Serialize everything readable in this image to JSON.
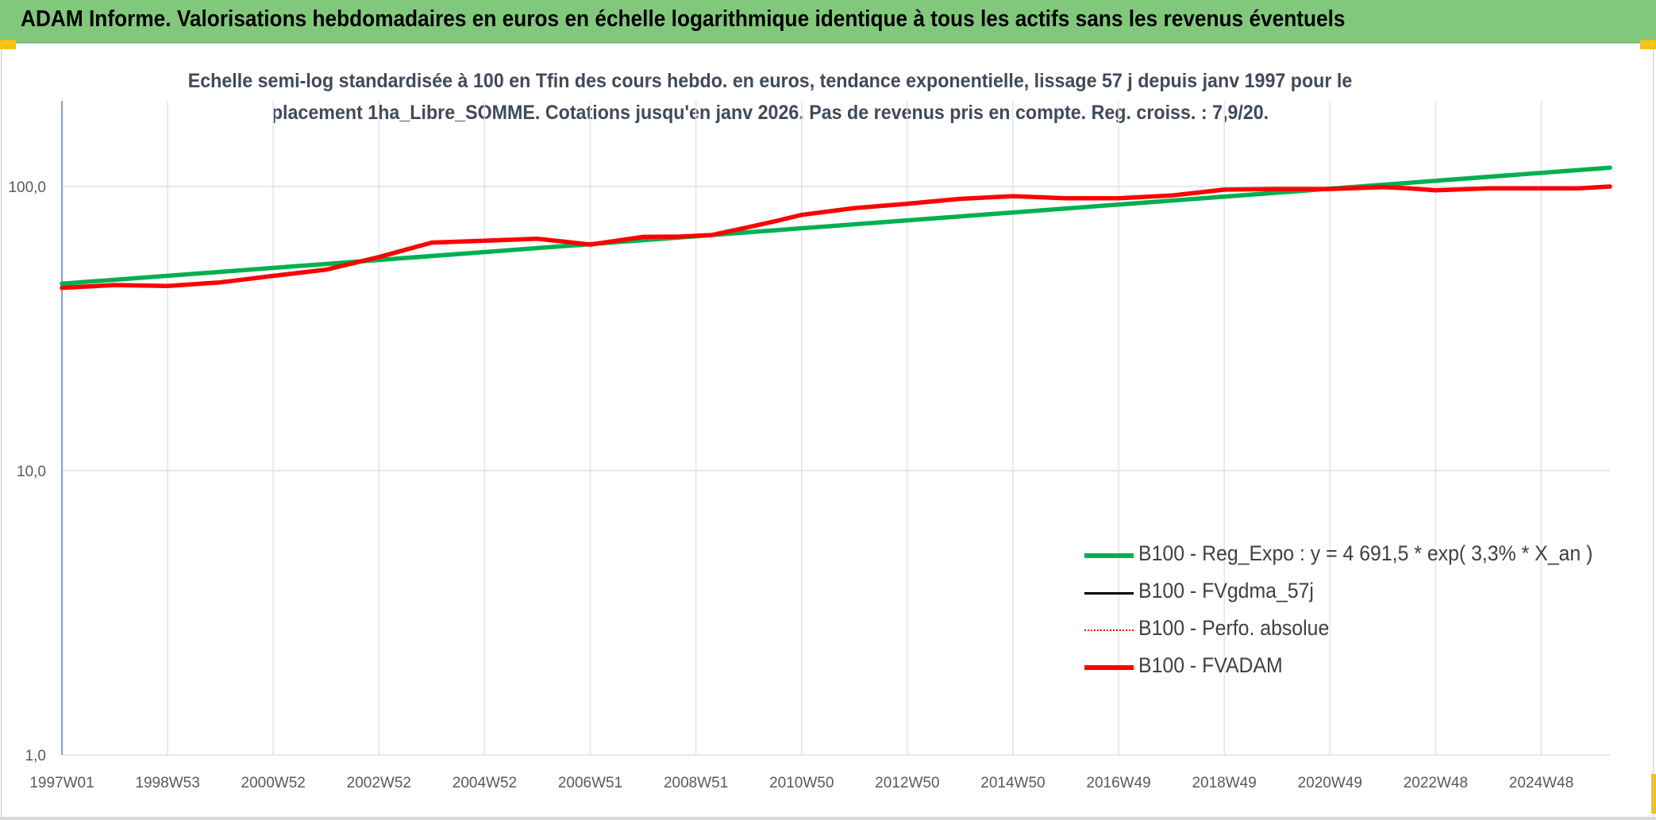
{
  "header": {
    "title": "ADAM Informe. Valorisations hebdomadaires en euros en échelle logarithmique identique à tous les actifs sans les revenus éventuels"
  },
  "colors": {
    "header_bg": "#82c87c",
    "green": "#00b050",
    "red": "#ff0000",
    "black": "#000000",
    "corner": "#f2c10f"
  },
  "chart_data": {
    "type": "line",
    "title_line1": "Echelle semi-log standardisée à 100 en Tfin des cours hebdo. en euros, tendance exponentielle, lissage 57 j depuis janv 1997 pour le",
    "title_line2": "placement 1ha_Libre_SOMME. Cotations jusqu'en janv 2026. Pas de revenus pris en compte. Reg. croiss. : 7,9/20.",
    "y_scale": "log",
    "ylim": [
      1,
      200
    ],
    "y_ticks": [
      1,
      10,
      100
    ],
    "y_tick_labels": [
      "1,0",
      "10,0",
      "100,0"
    ],
    "x_range": [
      1997.0,
      2026.3
    ],
    "x_ticks": [
      1997,
      1999,
      2001,
      2003,
      2005,
      2007,
      2009,
      2011,
      2013,
      2015,
      2017,
      2019,
      2021,
      2023,
      2025
    ],
    "x_tick_labels": [
      "1997W01",
      "1998W53",
      "2000W52",
      "2002W52",
      "2004W52",
      "2006W51",
      "2008W51",
      "2010W50",
      "2012W50",
      "2014W50",
      "2016W49",
      "2018W49",
      "2020W49",
      "2022W48",
      "2024W48"
    ],
    "grid": true,
    "legend_position": "lower-right",
    "series": [
      {
        "name": "B100 - Reg_Expo : y = 4 691,5 * exp( 3,3% *  X_an )",
        "color": "#00b050",
        "style": "solid",
        "x": [
          1997.0,
          2026.3
        ],
        "values": [
          45.5,
          116.5
        ]
      },
      {
        "name": "B100 - FVgdma_57j",
        "color": "#000000",
        "style": "solid",
        "x": [],
        "values": []
      },
      {
        "name": "B100 - Perfo. absolue",
        "color": "#ff0000",
        "style": "dotted",
        "x": [],
        "values": []
      },
      {
        "name": "B100 - FVADAM",
        "color": "#ff0000",
        "style": "solid",
        "x": [
          1997.0,
          1998.0,
          1999.0,
          2000.0,
          2001.0,
          2002.0,
          2003.0,
          2004.0,
          2005.0,
          2005.5,
          2006.0,
          2006.5,
          2007.0,
          2008.0,
          2008.7,
          2009.3,
          2010.0,
          2010.5,
          2011.0,
          2012.0,
          2013.0,
          2014.0,
          2015.0,
          2016.0,
          2017.0,
          2018.0,
          2019.0,
          2020.0,
          2021.0,
          2022.0,
          2022.5,
          2023.0,
          2024.0,
          2025.0,
          2025.7,
          2026.3
        ],
        "values": [
          44.0,
          45.0,
          44.7,
          46.0,
          48.5,
          51.0,
          56.5,
          63.5,
          64.5,
          65.0,
          65.5,
          64.0,
          62.5,
          66.5,
          66.7,
          67.5,
          72.0,
          75.5,
          79.5,
          84.0,
          87.0,
          90.5,
          92.5,
          91.0,
          91.0,
          93.0,
          97.5,
          98.0,
          98.0,
          99.5,
          98.5,
          97.0,
          98.5,
          98.5,
          98.5,
          100.0
        ]
      }
    ]
  }
}
